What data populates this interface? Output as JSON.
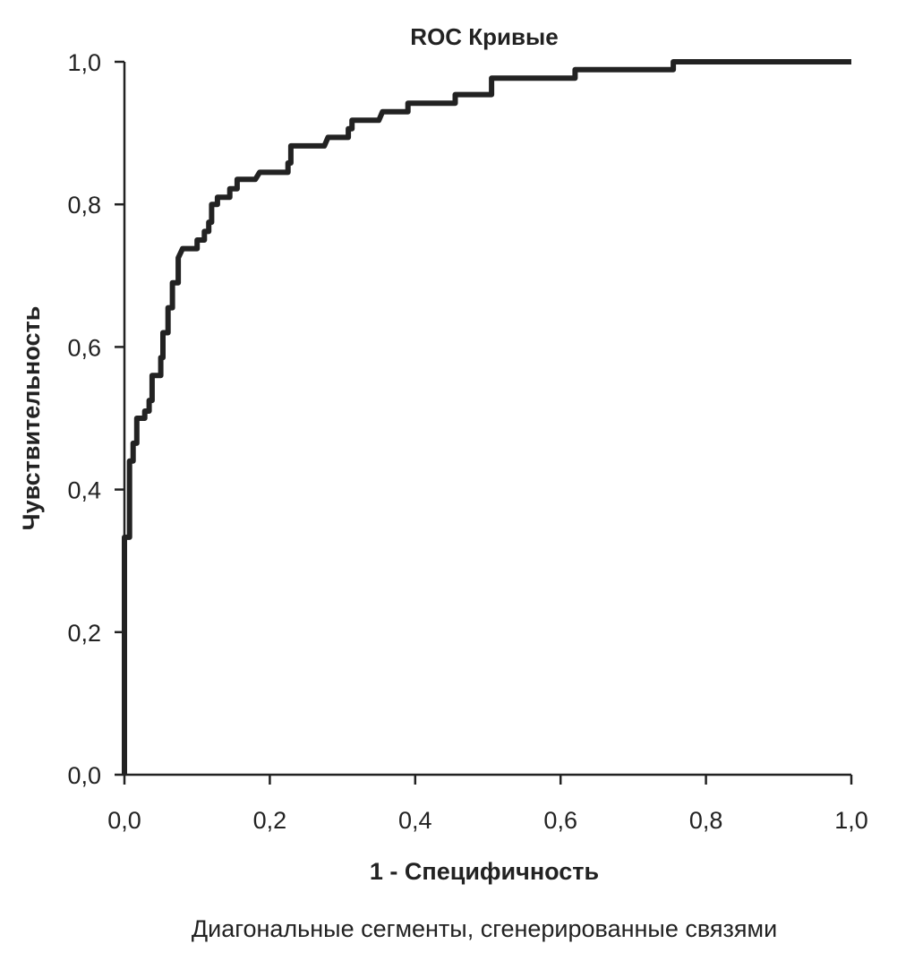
{
  "chart_data": {
    "type": "line",
    "title": "ROC Кривые",
    "xlabel": "1 - Специфичность",
    "ylabel": "Чувствительность",
    "footnote": "Диагональные сегменты, сгенерированные связями",
    "xlim": [
      0,
      1
    ],
    "ylim": [
      0,
      1
    ],
    "grid": false,
    "x_ticks": [
      "0,0",
      "0,2",
      "0,4",
      "0,6",
      "0,8",
      "1,0"
    ],
    "y_ticks": [
      "0,0",
      "0,2",
      "0,4",
      "0,6",
      "0,8",
      "1,0"
    ],
    "x_tick_values": [
      0,
      0.2,
      0.4,
      0.6,
      0.8,
      1.0
    ],
    "y_tick_values": [
      0,
      0.2,
      0.4,
      0.6,
      0.8,
      1.0
    ],
    "series": [
      {
        "name": "ROC",
        "color": "#222222",
        "points": [
          [
            0,
            0
          ],
          [
            0,
            0.333
          ],
          [
            0.007,
            0.333
          ],
          [
            0.007,
            0.44
          ],
          [
            0.012,
            0.44
          ],
          [
            0.012,
            0.465
          ],
          [
            0.017,
            0.465
          ],
          [
            0.017,
            0.5
          ],
          [
            0.028,
            0.5
          ],
          [
            0.028,
            0.51
          ],
          [
            0.034,
            0.51
          ],
          [
            0.034,
            0.525
          ],
          [
            0.038,
            0.525
          ],
          [
            0.038,
            0.56
          ],
          [
            0.05,
            0.56
          ],
          [
            0.05,
            0.585
          ],
          [
            0.053,
            0.585
          ],
          [
            0.053,
            0.62
          ],
          [
            0.06,
            0.62
          ],
          [
            0.06,
            0.655
          ],
          [
            0.066,
            0.655
          ],
          [
            0.066,
            0.69
          ],
          [
            0.074,
            0.69
          ],
          [
            0.074,
            0.725
          ],
          [
            0.08,
            0.738
          ],
          [
            0.1,
            0.738
          ],
          [
            0.1,
            0.75
          ],
          [
            0.11,
            0.75
          ],
          [
            0.11,
            0.762
          ],
          [
            0.116,
            0.762
          ],
          [
            0.116,
            0.775
          ],
          [
            0.12,
            0.775
          ],
          [
            0.12,
            0.8
          ],
          [
            0.128,
            0.8
          ],
          [
            0.128,
            0.81
          ],
          [
            0.145,
            0.81
          ],
          [
            0.145,
            0.822
          ],
          [
            0.155,
            0.822
          ],
          [
            0.155,
            0.835
          ],
          [
            0.18,
            0.835
          ],
          [
            0.186,
            0.845
          ],
          [
            0.225,
            0.845
          ],
          [
            0.225,
            0.858
          ],
          [
            0.229,
            0.858
          ],
          [
            0.229,
            0.882
          ],
          [
            0.275,
            0.882
          ],
          [
            0.28,
            0.894
          ],
          [
            0.308,
            0.894
          ],
          [
            0.308,
            0.906
          ],
          [
            0.313,
            0.906
          ],
          [
            0.313,
            0.918
          ],
          [
            0.35,
            0.918
          ],
          [
            0.355,
            0.93
          ],
          [
            0.39,
            0.93
          ],
          [
            0.39,
            0.942
          ],
          [
            0.455,
            0.942
          ],
          [
            0.455,
            0.954
          ],
          [
            0.505,
            0.954
          ],
          [
            0.505,
            0.977
          ],
          [
            0.62,
            0.977
          ],
          [
            0.62,
            0.989
          ],
          [
            0.755,
            0.989
          ],
          [
            0.755,
            1.0
          ],
          [
            1.0,
            1.0
          ]
        ]
      }
    ]
  }
}
